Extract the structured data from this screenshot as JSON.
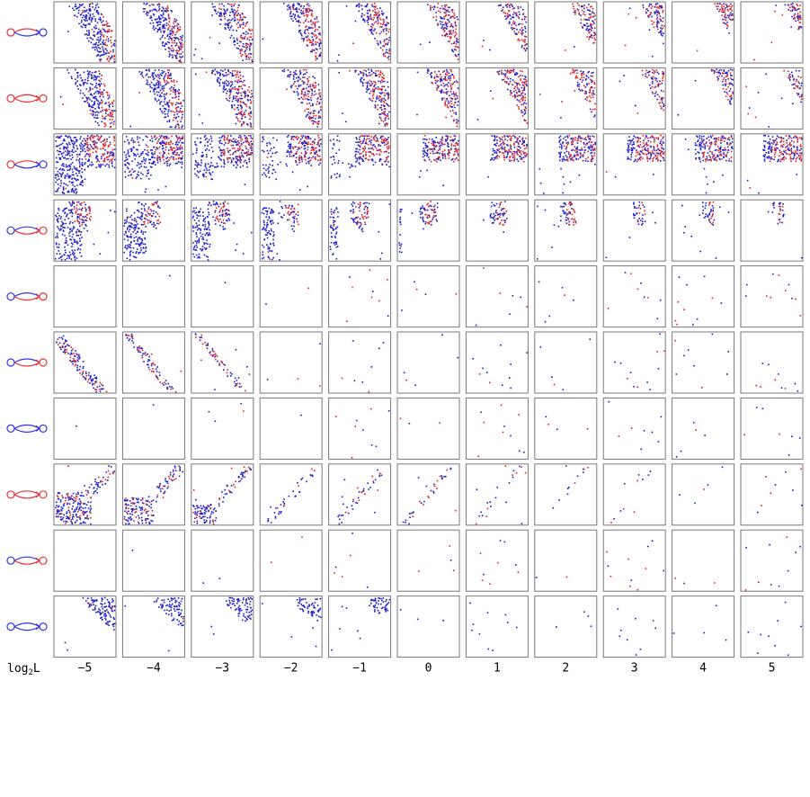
{
  "figure": {
    "row_label": {
      "base": "log",
      "sub": "2",
      "var": "L"
    },
    "columns": [
      "−5",
      "−4",
      "−3",
      "−2",
      "−1",
      "0",
      "1",
      "2",
      "3",
      "4",
      "5"
    ]
  }
}
